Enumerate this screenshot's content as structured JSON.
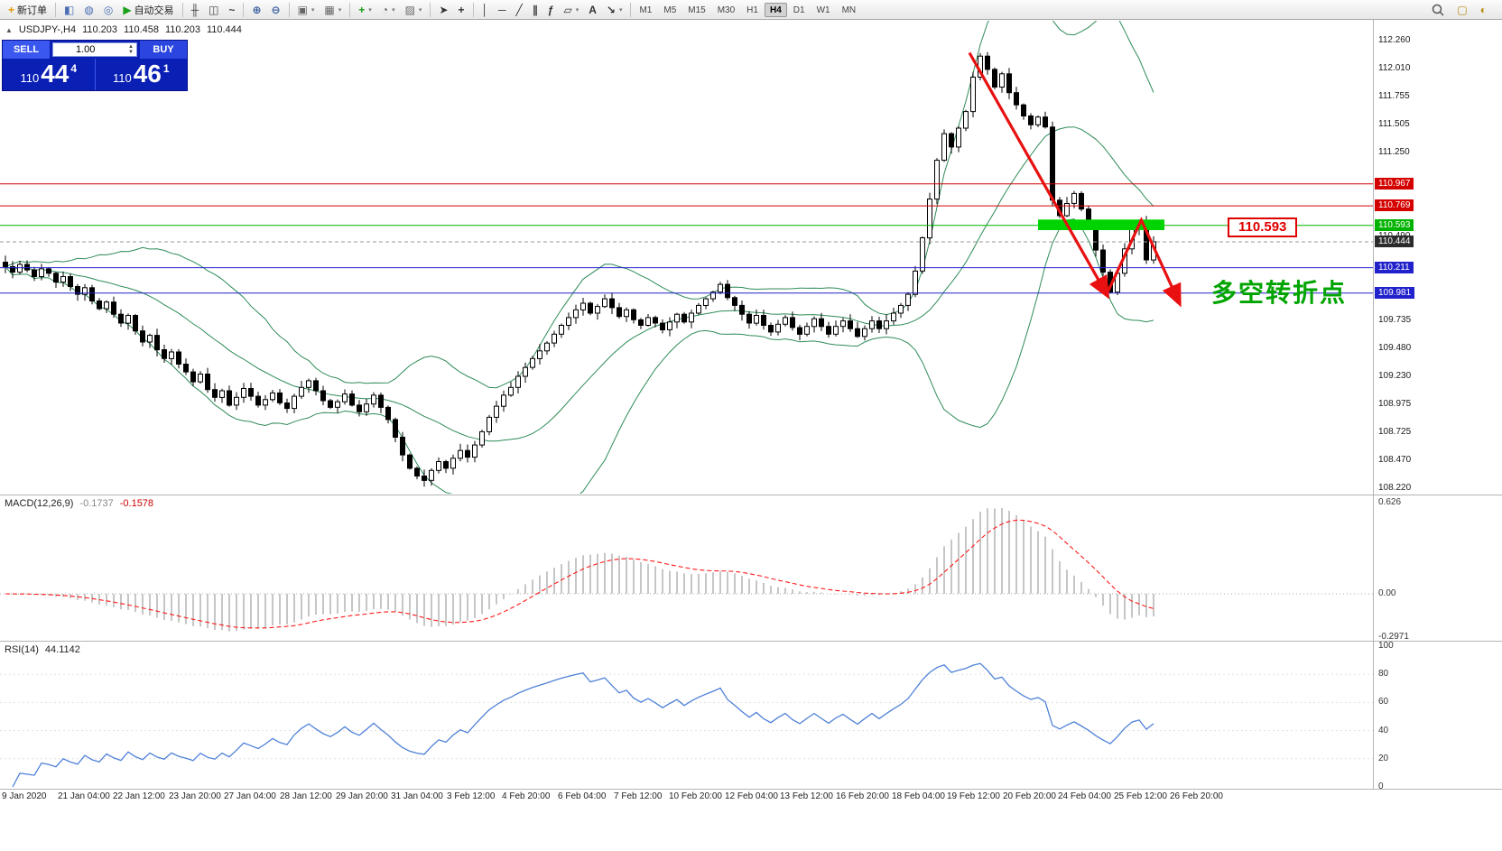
{
  "toolbar": {
    "items": [
      {
        "name": "new-order-button",
        "glyph": "+",
        "color": "#e09a00",
        "label": "新订单"
      },
      {
        "type": "sep"
      },
      {
        "name": "market-watch-button",
        "glyph": "◧",
        "color": "#4a6fb5"
      },
      {
        "name": "data-window-button",
        "glyph": "◍",
        "color": "#4a6fb5"
      },
      {
        "name": "navigator-button",
        "glyph": "◎",
        "color": "#4a6fb5"
      },
      {
        "name": "auto-trading-button",
        "glyph": "▶",
        "color": "#18a018",
        "label": "自动交易"
      },
      {
        "type": "sep"
      },
      {
        "name": "bar-chart-button",
        "glyph": "╫",
        "color": "#444"
      },
      {
        "name": "candlestick-chart-button",
        "glyph": "◫",
        "color": "#444"
      },
      {
        "name": "line-chart-button",
        "glyph": "~",
        "color": "#444"
      },
      {
        "type": "sep"
      },
      {
        "name": "zoom-in-button",
        "glyph": "⊕",
        "color": "#3a5fa0"
      },
      {
        "name": "zoom-out-button",
        "glyph": "⊖",
        "color": "#3a5fa0"
      },
      {
        "type": "sep"
      },
      {
        "name": "new-chart-button",
        "glyph": "▣",
        "color": "#666",
        "caret": true
      },
      {
        "name": "profiles-button",
        "glyph": "▦",
        "color": "#666",
        "caret": true
      },
      {
        "type": "sep"
      },
      {
        "name": "indicators-button",
        "glyph": "+",
        "color": "#18a018",
        "caret": true
      },
      {
        "name": "periods-button",
        "glyph": "◔",
        "color": "#666",
        "caret": true
      },
      {
        "name": "templates-button",
        "glyph": "▨",
        "color": "#666",
        "caret": true
      },
      {
        "type": "sep"
      },
      {
        "name": "cursor-button",
        "glyph": "➤",
        "color": "#333"
      },
      {
        "name": "crosshair-button",
        "glyph": "+",
        "color": "#333"
      },
      {
        "type": "sep"
      },
      {
        "name": "vertical-line-button",
        "glyph": "│",
        "color": "#333"
      },
      {
        "name": "horizontal-line-button",
        "glyph": "─",
        "color": "#333"
      },
      {
        "name": "trendline-button",
        "glyph": "╱",
        "color": "#333"
      },
      {
        "name": "channel-button",
        "glyph": "∥",
        "color": "#333"
      },
      {
        "name": "fibonacci-button",
        "glyph": "ƒ",
        "color": "#333"
      },
      {
        "name": "shapes-button",
        "glyph": "▱",
        "color": "#333",
        "caret": true
      },
      {
        "name": "text-button",
        "glyph": "A",
        "color": "#333"
      },
      {
        "name": "arrows-button",
        "glyph": "↘",
        "color": "#333",
        "caret": true
      },
      {
        "type": "sep"
      }
    ],
    "timeframes": [
      "M1",
      "M5",
      "M15",
      "M30",
      "H1",
      "H4",
      "D1",
      "W1",
      "MN"
    ],
    "active_timeframe": "H4"
  },
  "chart": {
    "symbol_period": "USDJPY-,H4",
    "open": "110.203",
    "high": "110.458",
    "low": "110.203",
    "close": "110.444"
  },
  "trade_panel": {
    "sell_label": "SELL",
    "buy_label": "BUY",
    "volume": "1.00",
    "sell_price": {
      "prefix": "110",
      "big": "44",
      "sup": "4"
    },
    "buy_price": {
      "prefix": "110",
      "big": "46",
      "sup": "1"
    }
  },
  "price_axis": {
    "plain": [
      "112.260",
      "112.010",
      "111.755",
      "111.505",
      "111.250",
      "110.490",
      "109.735",
      "109.480",
      "109.230",
      "108.975",
      "108.725",
      "108.470",
      "108.220"
    ],
    "special": [
      {
        "value": "110.967",
        "color": "#d40000"
      },
      {
        "value": "110.769",
        "color": "#d40000"
      },
      {
        "value": "110.593",
        "color": "#00b300"
      },
      {
        "value": "110.444",
        "color": "#2b2b2b"
      },
      {
        "value": "110.211",
        "color": "#2222cc"
      },
      {
        "value": "109.981",
        "color": "#2222cc"
      }
    ]
  },
  "levels": [
    {
      "price": 110.967,
      "color": "#d40000"
    },
    {
      "price": 110.769,
      "color": "#d40000"
    },
    {
      "price": 110.593,
      "color": "#00b300"
    },
    {
      "price": 110.211,
      "color": "#2222cc"
    },
    {
      "price": 109.981,
      "color": "#2222cc"
    }
  ],
  "current_price": {
    "value": "110.444"
  },
  "indicators": {
    "macd": {
      "label": "MACD(12,26,9)",
      "value_main": "-0.1737",
      "value_signal": "-0.1578",
      "axis": [
        "0.626",
        "0.00",
        "-0.2971"
      ]
    },
    "rsi": {
      "label": "RSI(14)",
      "value": "44.1142",
      "axis": [
        "100",
        "80",
        "60",
        "40",
        "20",
        "0"
      ]
    }
  },
  "time_axis": [
    "9 Jan 2020",
    "21 Jan 04:00",
    "22 Jan 12:00",
    "23 Jan 20:00",
    "27 Jan 04:00",
    "28 Jan 12:00",
    "29 Jan 20:00",
    "31 Jan 04:00",
    "3 Feb 12:00",
    "4 Feb 20:00",
    "6 Feb 04:00",
    "7 Feb 12:00",
    "10 Feb 20:00",
    "12 Feb 04:00",
    "13 Feb 12:00",
    "16 Feb 20:00",
    "18 Feb 04:00",
    "19 Feb 12:00",
    "20 Feb 20:00",
    "24 Feb 04:00",
    "25 Feb 12:00",
    "26 Feb 20:00"
  ],
  "annotations": {
    "zone_label": "110.593",
    "turning_point_text": "多空转折点",
    "arrows": [
      {
        "points": [
          [
            133.5,
            112.15
          ],
          [
            152.5,
            109.97
          ]
        ]
      },
      {
        "points": [
          [
            152.5,
            109.97
          ],
          [
            157.3,
            110.64
          ],
          [
            162.5,
            109.9
          ]
        ]
      }
    ],
    "green_zone": {
      "i1": 143,
      "i2": 160.5,
      "p1": 110.55,
      "p2": 110.645
    },
    "colors": {
      "arrow": "#e81010",
      "zone": "#00d400",
      "text": "#00a400",
      "label_border": "#e00000"
    }
  },
  "chart_data": {
    "type": "candlestick",
    "symbol": "USDJPY",
    "timeframe": "H4",
    "ylim": [
      108.22,
      112.26
    ],
    "bollinger": {
      "period": 20,
      "deviation": 2
    },
    "macd_params": [
      12,
      26,
      9
    ],
    "rsi_period": 14,
    "last_candle_ohlc": [
      110.203,
      110.458,
      110.203,
      110.444
    ],
    "closes": [
      110.22,
      110.17,
      110.24,
      110.19,
      110.13,
      110.2,
      110.16,
      110.08,
      110.13,
      110.04,
      109.97,
      110.03,
      109.91,
      109.84,
      109.9,
      109.79,
      109.71,
      109.78,
      109.64,
      109.54,
      109.6,
      109.47,
      109.39,
      109.45,
      109.34,
      109.27,
      109.18,
      109.25,
      109.11,
      109.04,
      109.1,
      108.97,
      109.04,
      109.12,
      109.05,
      108.97,
      109.02,
      109.08,
      108.99,
      108.94,
      109.05,
      109.13,
      109.19,
      109.1,
      109.01,
      108.95,
      109.0,
      109.07,
      108.97,
      108.91,
      108.98,
      109.06,
      108.95,
      108.84,
      108.68,
      108.52,
      108.4,
      108.33,
      108.29,
      108.38,
      108.46,
      108.4,
      108.49,
      108.56,
      108.5,
      108.61,
      108.73,
      108.86,
      108.96,
      109.06,
      109.13,
      109.23,
      109.31,
      109.39,
      109.46,
      109.53,
      109.61,
      109.69,
      109.76,
      109.83,
      109.89,
      109.8,
      109.86,
      109.93,
      109.85,
      109.77,
      109.83,
      109.74,
      109.69,
      109.76,
      109.71,
      109.65,
      109.72,
      109.79,
      109.72,
      109.8,
      109.87,
      109.93,
      109.99,
      110.06,
      109.94,
      109.87,
      109.79,
      109.71,
      109.78,
      109.69,
      109.63,
      109.7,
      109.76,
      109.67,
      109.61,
      109.68,
      109.75,
      109.68,
      109.61,
      109.68,
      109.73,
      109.66,
      109.59,
      109.66,
      109.73,
      109.66,
      109.73,
      109.8,
      109.87,
      109.97,
      110.18,
      110.48,
      110.83,
      111.18,
      111.42,
      111.3,
      111.47,
      111.62,
      111.93,
      112.12,
      112.0,
      111.84,
      111.96,
      111.79,
      111.68,
      111.58,
      111.5,
      111.57,
      111.48,
      110.82,
      110.68,
      110.79,
      110.88,
      110.74,
      110.58,
      110.37,
      110.17,
      109.99,
      110.16,
      110.38,
      110.56,
      110.62,
      110.28,
      110.444
    ]
  }
}
